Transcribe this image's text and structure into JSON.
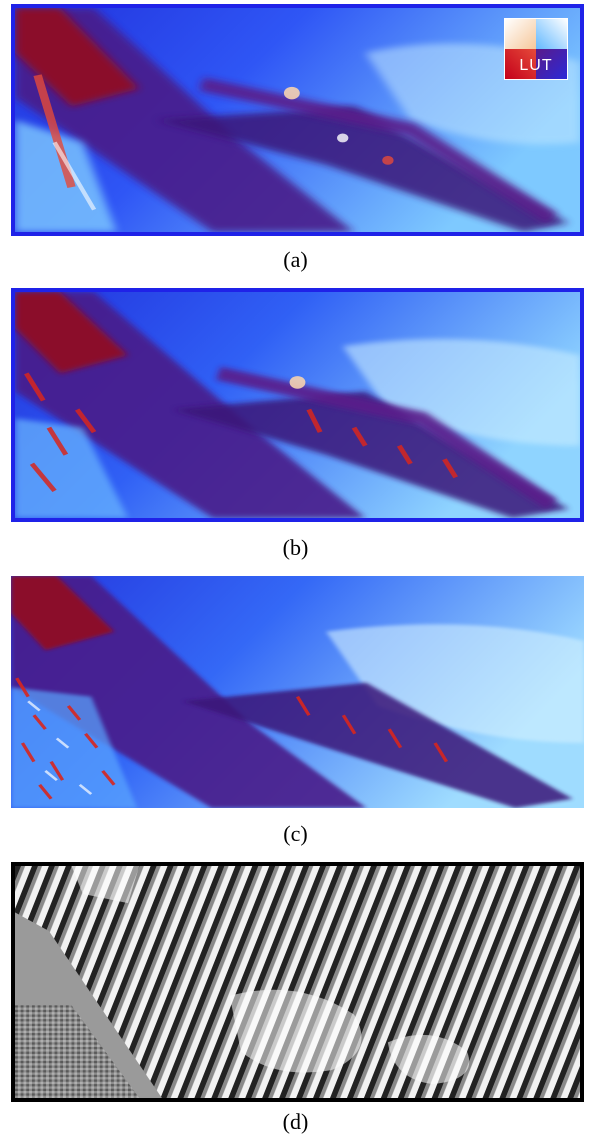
{
  "panels": [
    {
      "id": "a",
      "caption": "(a)"
    },
    {
      "id": "b",
      "caption": "(b)"
    },
    {
      "id": "c",
      "caption": "(c)"
    },
    {
      "id": "d",
      "caption": "(d)"
    }
  ],
  "lut": {
    "label": "LUT"
  },
  "colors": {
    "frame_blue": "#1f22e8",
    "frame_black": "#000000",
    "deep_blue": "#2b2bf0",
    "light_blue": "#8fd0ff",
    "purple": "#5a1a8a",
    "dark_red": "#8b0f2a",
    "red": "#d8261e",
    "white": "#ffffff"
  }
}
